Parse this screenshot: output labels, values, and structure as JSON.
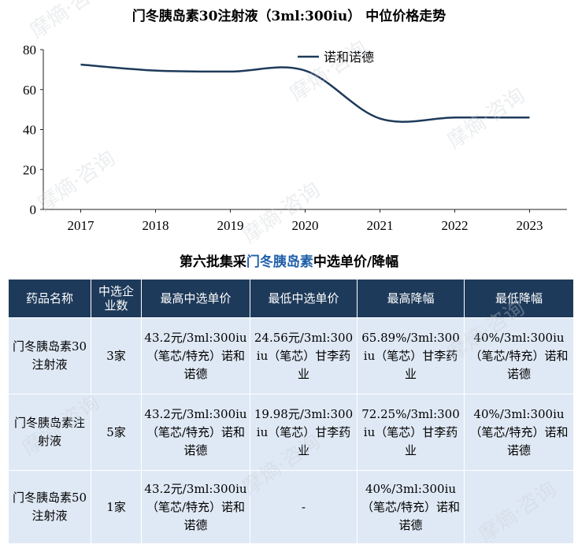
{
  "chart_title": "门冬胰岛素30注射液（3ml:300iu） 中位价格走势",
  "chart_data": {
    "type": "line",
    "x": [
      "2017",
      "2018",
      "2019",
      "2020",
      "2021",
      "2022",
      "2023"
    ],
    "series": [
      {
        "name": "诺和诺德",
        "values": [
          72.5,
          69.5,
          69.0,
          69.5,
          45.5,
          46.0,
          46.0
        ]
      }
    ],
    "ylim": [
      0,
      80
    ],
    "yticks": [
      "0",
      "20",
      "40",
      "60",
      "80"
    ],
    "legend": "top-right",
    "grid": false,
    "line_color": "#1e3a5a"
  },
  "table_title_prefix": "第六批集采",
  "table_title_highlight": "门冬胰岛素",
  "table_title_suffix": "中选单价/降幅",
  "table": {
    "headers": [
      "药品名称",
      "中选企业数",
      "最高中选单价",
      "最低中选单价",
      "最高降幅",
      "最低降幅"
    ],
    "rows": [
      [
        "门冬胰岛素30注射液",
        "3家",
        "43.2元/3ml:300iu（笔芯/特充）诺和诺德",
        "24.56元/3ml:300iu（笔芯）甘李药业",
        "65.89%/3ml:300iu（笔芯）甘李药业",
        "40%/3ml:300iu（笔芯/特充）诺和诺德"
      ],
      [
        "门冬胰岛素注射液",
        "5家",
        "43.2元/3ml:300iu（笔芯/特充）诺和诺德",
        "19.98元/3ml:300iu（笔芯）甘李药业",
        "72.25%/3ml:300iu（笔芯）甘李药业",
        "40%/3ml:300iu（笔芯/特充）诺和诺德"
      ],
      [
        "门冬胰岛素50注射液",
        "1家",
        "43.2元/3ml:300iu（笔芯/特充）诺和诺德",
        "-",
        "40%/3ml:300iu（笔芯/特充）诺和诺德",
        ""
      ]
    ]
  },
  "watermark_text": "摩熵·咨询",
  "colors": {
    "header_bg": "#1e3a5a",
    "cell_bg": "#dfe9f5",
    "highlight": "#1f5fa8"
  }
}
